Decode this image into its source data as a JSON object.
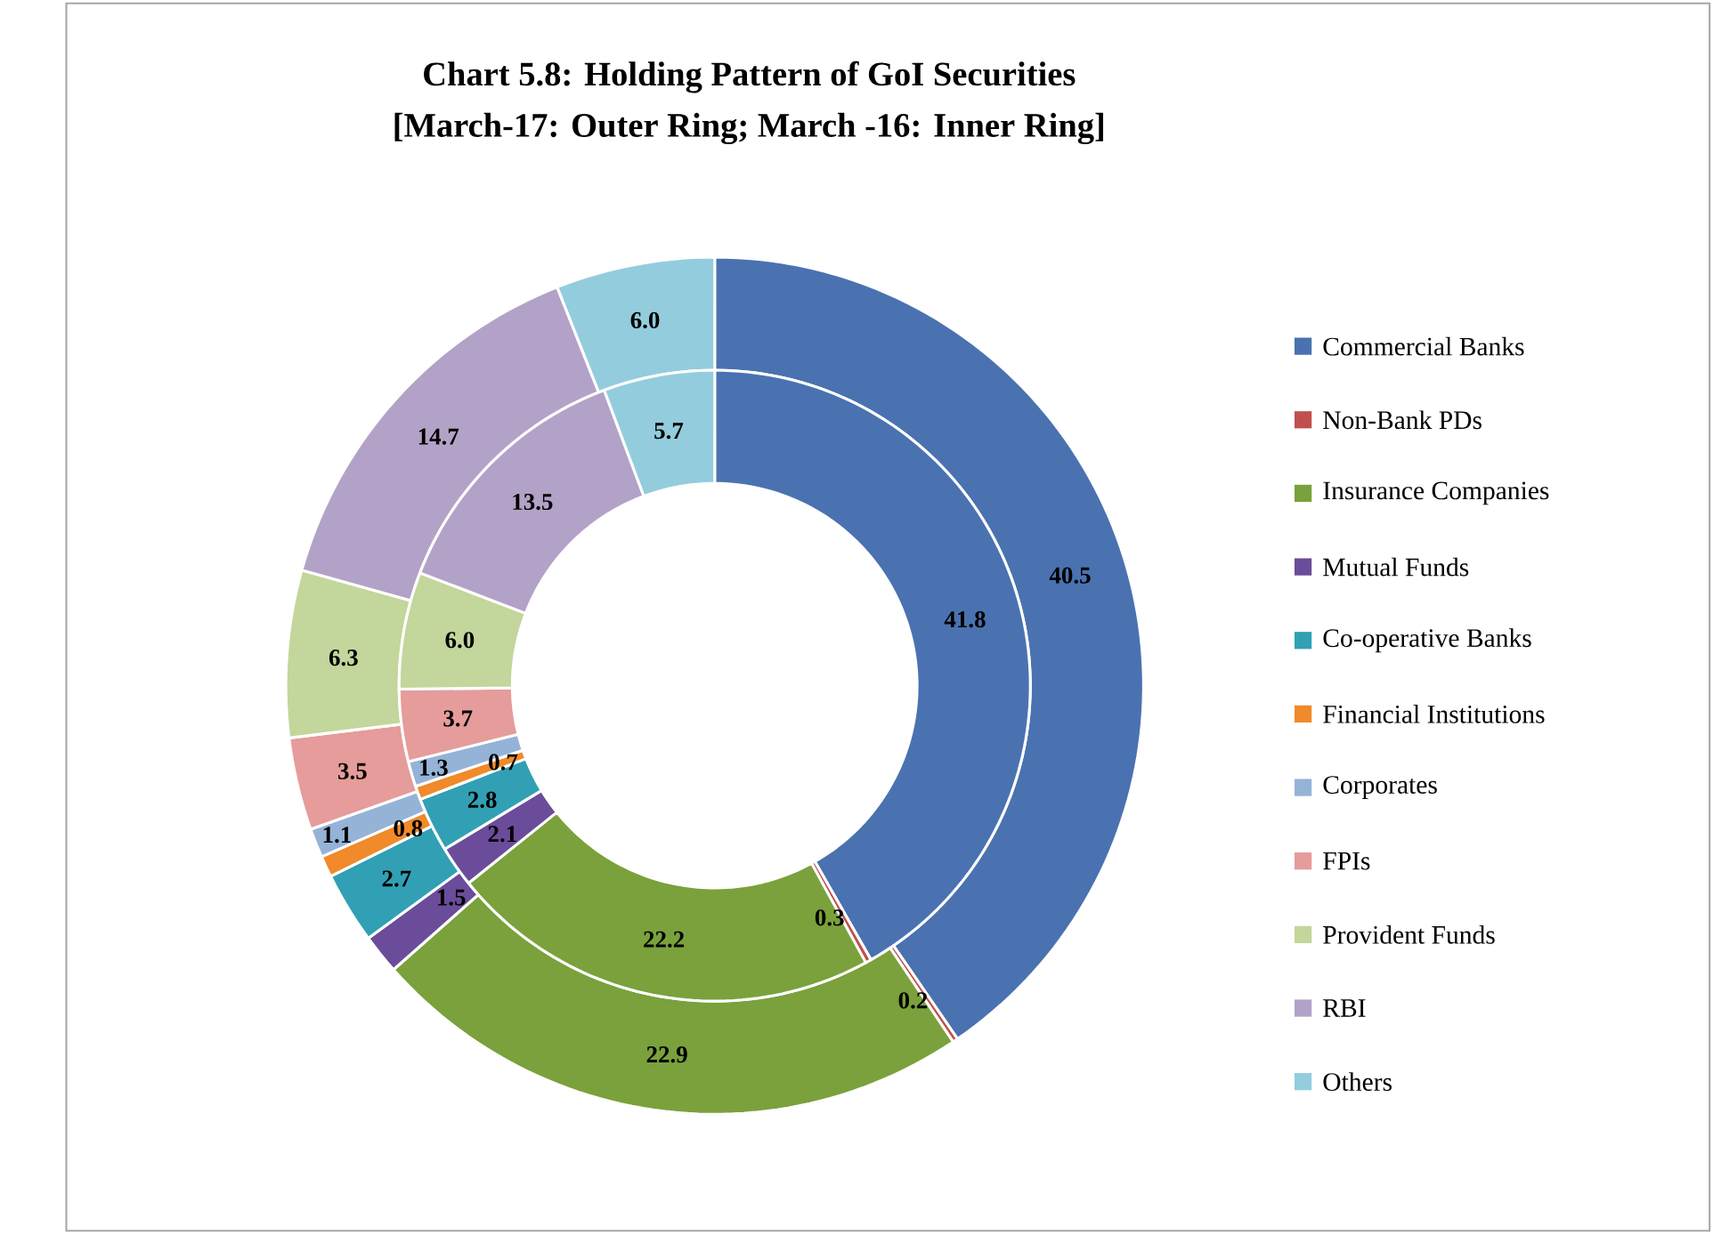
{
  "chart_data": {
    "type": "donut",
    "title": "Chart 5.8: Holding Pattern of GoI Securities",
    "subtitle": "[March-17: Outer Ring; March -16: Inner Ring]",
    "categories": [
      "Commercial Banks",
      "Non-Bank PDs",
      "Insurance Companies",
      "Mutual Funds",
      "Co-operative Banks",
      "Financial Institutions",
      "Corporates",
      "FPIs",
      "Provident Funds",
      "RBI",
      "Others"
    ],
    "colors": [
      "#4a72b0",
      "#c0504d",
      "#7aa13c",
      "#6b4c9a",
      "#31a0b4",
      "#f08a2a",
      "#95b3d7",
      "#e59c9a",
      "#c3d69b",
      "#b3a2c7",
      "#93cddd"
    ],
    "series": [
      {
        "values": [
          40.5,
          0.2,
          22.9,
          1.5,
          2.7,
          0.8,
          1.1,
          3.5,
          6.3,
          14.7,
          6.0
        ],
        "value_labels": [
          "40.5",
          "0.2",
          "22.9",
          "1.5",
          "2.7",
          "0.8",
          "1.1",
          "3.5",
          "6.3",
          "14.7",
          "6.0"
        ]
      },
      {
        "values": [
          41.8,
          0.3,
          22.2,
          2.1,
          2.8,
          0.7,
          1.3,
          3.7,
          6.0,
          13.5,
          5.7
        ],
        "value_labels": [
          "41.8",
          "0.3",
          "22.2",
          "2.1",
          "2.8",
          "0.7",
          "1.3",
          "3.7",
          "6.0",
          "13.5",
          "5.7"
        ]
      }
    ],
    "legend": "right"
  }
}
